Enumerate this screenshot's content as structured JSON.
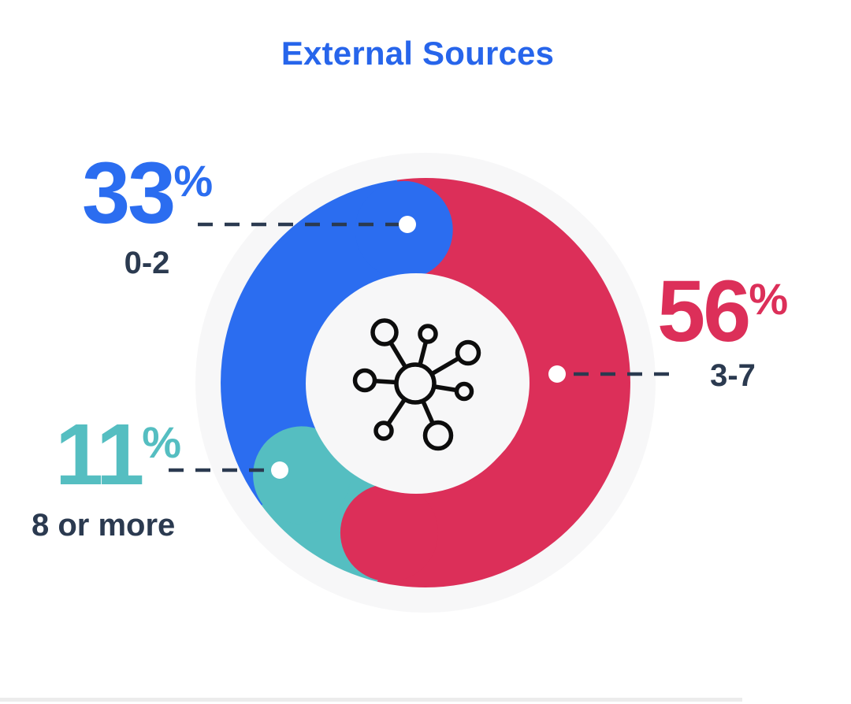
{
  "title": "External Sources",
  "percent_sign": "%",
  "chart_data": {
    "type": "pie",
    "subtype": "donut-with-rounded-segment-caps",
    "title": "External Sources",
    "unit": "%",
    "segments": [
      {
        "label": "0-2",
        "value": 33,
        "color": "#2B6DF0"
      },
      {
        "label": "3-7",
        "value": 56,
        "color": "#DC2F59"
      },
      {
        "label": "8 or more",
        "value": 11,
        "color": "#55BEC1"
      }
    ],
    "draw_order_clockwise_from_top": [
      "3-7",
      "8 or more",
      "0-2"
    ],
    "rotation_deg": 352,
    "legend_position": "callouts-with-dashed-leader-lines",
    "center_icon": "network-hub-icon",
    "background_circle_color": "#F7F7F8",
    "leader_line_color": "#2B3A50",
    "leader_dot_color": "#FFFFFF"
  }
}
